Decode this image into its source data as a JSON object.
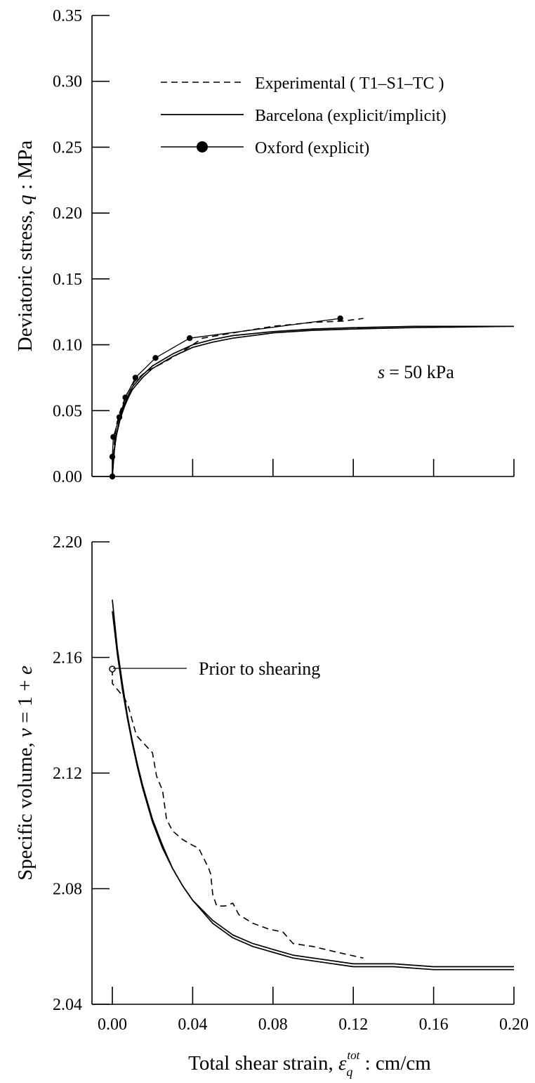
{
  "chart_data": [
    {
      "type": "line",
      "ylabel": "Deviatoric stress, q : MPa",
      "ylabel_parts": {
        "before": "Deviatoric stress, ",
        "symbol": "q",
        "after": " : MPa"
      },
      "xlim": [
        0.0,
        0.2
      ],
      "ylim": [
        0.0,
        0.35
      ],
      "y_ticks": [
        "0.00",
        "0.05",
        "0.10",
        "0.15",
        "0.20",
        "0.25",
        "0.30",
        "0.35"
      ],
      "x_ticks_shown": false,
      "legend_position": "top-right",
      "annotation": {
        "symbol": "s",
        "text": "= 50 kPa"
      },
      "series": [
        {
          "name": "Experimental ( T1–S1–TC )",
          "style": "dashed",
          "x": [
            0.0,
            0.0005,
            0.001,
            0.002,
            0.004,
            0.007,
            0.011,
            0.017,
            0.025,
            0.034,
            0.045,
            0.06,
            0.08,
            0.1,
            0.115,
            0.125
          ],
          "y": [
            0.0,
            0.014,
            0.026,
            0.039,
            0.05,
            0.062,
            0.072,
            0.08,
            0.086,
            0.094,
            0.105,
            0.109,
            0.114,
            0.117,
            0.118,
            0.12
          ]
        },
        {
          "name": "Barcelona (explicit/implicit)",
          "style": "solid",
          "x": [
            0.0,
            0.001,
            0.002,
            0.004,
            0.006,
            0.008,
            0.01,
            0.015,
            0.02,
            0.03,
            0.04,
            0.05,
            0.06,
            0.08,
            0.1,
            0.12,
            0.15,
            0.2
          ],
          "y": [
            0.0,
            0.021,
            0.032,
            0.046,
            0.055,
            0.062,
            0.068,
            0.077,
            0.084,
            0.093,
            0.1,
            0.104,
            0.107,
            0.11,
            0.112,
            0.113,
            0.114,
            0.114
          ]
        },
        {
          "name": "Barcelona (explicit/implicit) 2",
          "style": "solid",
          "x": [
            0.0,
            0.001,
            0.002,
            0.004,
            0.006,
            0.008,
            0.01,
            0.015,
            0.02,
            0.03,
            0.04,
            0.05,
            0.06,
            0.08,
            0.1,
            0.12,
            0.15,
            0.2
          ],
          "y": [
            0.0,
            0.02,
            0.031,
            0.044,
            0.053,
            0.06,
            0.066,
            0.075,
            0.082,
            0.091,
            0.098,
            0.102,
            0.105,
            0.109,
            0.111,
            0.112,
            0.113,
            0.114
          ]
        },
        {
          "name": "Oxford (explicit)",
          "style": "solid-marker",
          "x": [
            0.0,
            0.0,
            0.0005,
            0.0035,
            0.0065,
            0.0115,
            0.0215,
            0.0385,
            0.1135
          ],
          "y": [
            0.0,
            0.015,
            0.03,
            0.045,
            0.06,
            0.075,
            0.09,
            0.105,
            0.12
          ]
        }
      ]
    },
    {
      "type": "line",
      "xlabel": "Total shear strain, εq tot : cm/cm",
      "xlabel_parts": {
        "before": "Total shear strain, ",
        "symbol": "ε",
        "sub": "q",
        "sup": "tot",
        "after": " : cm/cm"
      },
      "ylabel": "Specific volume, v = 1 + e",
      "ylabel_parts": {
        "before": "Specific volume, ",
        "symbol": "v",
        "middle": " = 1 + ",
        "symbol2": "e"
      },
      "xlim": [
        0.0,
        0.2
      ],
      "ylim": [
        2.04,
        2.2
      ],
      "x_ticks": [
        "0.00",
        "0.04",
        "0.08",
        "0.12",
        "0.16",
        "0.20"
      ],
      "y_ticks": [
        "2.04",
        "2.08",
        "2.12",
        "2.16",
        "2.20"
      ],
      "annotation": {
        "text": "Prior to shearing",
        "x": 0.0,
        "y": 2.156
      },
      "series": [
        {
          "name": "Experimental ( T1–S1–TC )",
          "style": "dashed",
          "x": [
            0.0,
            0.0,
            0.006,
            0.008,
            0.012,
            0.02,
            0.022,
            0.025,
            0.027,
            0.03,
            0.035,
            0.04,
            0.043,
            0.048,
            0.049,
            0.05,
            0.052,
            0.056,
            0.06,
            0.063,
            0.07,
            0.078,
            0.085,
            0.09,
            0.1,
            0.112,
            0.125
          ],
          "y": [
            2.156,
            2.151,
            2.146,
            2.143,
            2.133,
            2.127,
            2.119,
            2.114,
            2.104,
            2.1,
            2.097,
            2.095,
            2.094,
            2.087,
            2.085,
            2.078,
            2.074,
            2.074,
            2.075,
            2.071,
            2.068,
            2.066,
            2.065,
            2.061,
            2.06,
            2.058,
            2.056
          ]
        },
        {
          "name": "Barcelona (explicit/implicit)",
          "style": "solid",
          "x": [
            0.0,
            0.0025,
            0.005,
            0.0075,
            0.01,
            0.0125,
            0.015,
            0.02,
            0.025,
            0.03,
            0.035,
            0.04,
            0.05,
            0.06,
            0.07,
            0.08,
            0.09,
            0.1,
            0.12,
            0.14,
            0.16,
            0.18,
            0.2
          ],
          "y": [
            2.18,
            2.163,
            2.151,
            2.14,
            2.131,
            2.123,
            2.116,
            2.104,
            2.095,
            2.087,
            2.081,
            2.076,
            2.069,
            2.064,
            2.061,
            2.059,
            2.057,
            2.056,
            2.054,
            2.054,
            2.053,
            2.053,
            2.053
          ]
        },
        {
          "name": "Barcelona (explicit/implicit) 2",
          "style": "solid",
          "x": [
            0.0,
            0.0025,
            0.005,
            0.0075,
            0.01,
            0.0125,
            0.015,
            0.02,
            0.025,
            0.03,
            0.035,
            0.04,
            0.05,
            0.06,
            0.07,
            0.08,
            0.09,
            0.1,
            0.12,
            0.14,
            0.16,
            0.18,
            0.2
          ],
          "y": [
            2.176,
            2.161,
            2.149,
            2.139,
            2.13,
            2.122,
            2.115,
            2.103,
            2.094,
            2.087,
            2.081,
            2.076,
            2.068,
            2.063,
            2.06,
            2.058,
            2.056,
            2.055,
            2.053,
            2.053,
            2.052,
            2.052,
            2.052
          ]
        }
      ]
    }
  ]
}
